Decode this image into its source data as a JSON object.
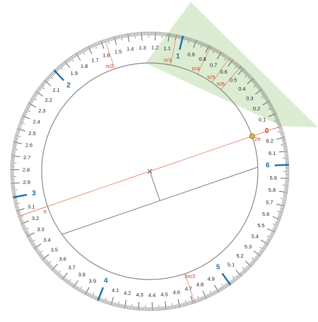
{
  "radian_labels": [
    "0",
    "0.1",
    "0.2",
    "0.3",
    "0.4",
    "0.5",
    "0.6",
    "0.7",
    "0.8",
    "0.9",
    "1",
    "1.1",
    "1.2",
    "1.3",
    "1.4",
    "1.5",
    "1.6",
    "1.7",
    "1.8",
    "1.9",
    "2",
    "2.1",
    "2.2",
    "2.3",
    "2.4",
    "2.5",
    "2.6",
    "2.7",
    "2.8",
    "2.9",
    "3",
    "3.1",
    "3.2",
    "3.3",
    "3.4",
    "3.5",
    "3.6",
    "3.7",
    "3.8",
    "3.9",
    "4",
    "4.1",
    "4.2",
    "4.3",
    "4.4",
    "4.5",
    "4.6",
    "4.7",
    "4.8",
    "4.9",
    "5",
    "5.1",
    "5.2",
    "5.3",
    "5.4",
    "5.5",
    "5.6",
    "5.7",
    "5.8",
    "5.9",
    "6",
    "6.1",
    "6.2"
  ],
  "special_angles": [
    {
      "label": "2π",
      "value": 6.283
    },
    {
      "label": "π/6",
      "value": 0.5236
    },
    {
      "label": "π/5",
      "value": 0.6283
    },
    {
      "label": "π/4",
      "value": 0.7854
    },
    {
      "label": "π/3",
      "value": 1.0472
    },
    {
      "label": "π/2",
      "value": 1.5708
    },
    {
      "label": "π",
      "value": 3.1416
    },
    {
      "label": "3π/2",
      "value": 4.7124
    }
  ],
  "measured_angle": 0.33,
  "colors": {
    "ring": "#d6d6d6",
    "tick": "#555555",
    "number_text": "#222222",
    "integer_text": "#1b6fa8",
    "integer_tick": "#1b6fa8",
    "special_text": "#c8401a",
    "special_line": "#e0795a",
    "zero_text": "#c8401a",
    "wedge_fill": "#cfe5c3",
    "inner_line": "#7a7a7a",
    "marker": "#d8c23a"
  }
}
